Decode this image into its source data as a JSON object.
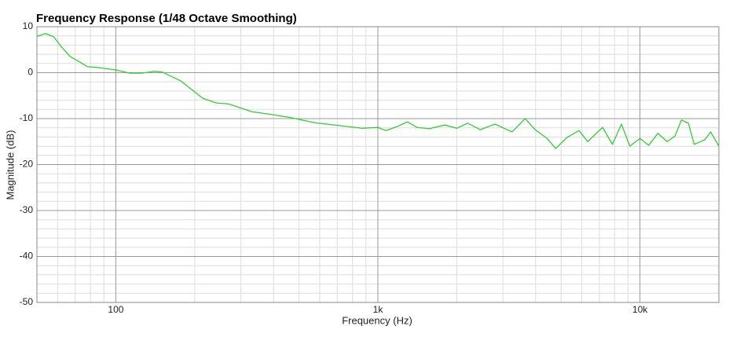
{
  "chart_data": {
    "type": "line",
    "title": "Frequency Response (1/48 Octave Smoothing)",
    "x_label": "Frequency (Hz)",
    "y_label": "Magnitude (dB)",
    "x_scale": "log",
    "grid": true,
    "xlim": [
      50,
      20000
    ],
    "ylim": [
      -50,
      10
    ],
    "xticks": [
      100,
      {
        "value": 1000,
        "label": "1k"
      },
      {
        "value": 10000,
        "label": "10k"
      }
    ],
    "yticks": [
      -50,
      -40,
      -30,
      -20,
      -10,
      0,
      10
    ],
    "x": [
      50,
      54,
      58,
      62,
      67,
      73,
      78,
      86,
      100,
      113,
      126,
      141,
      151,
      177,
      215,
      242,
      269,
      331,
      393,
      467,
      575,
      708,
      871,
      1000,
      1071,
      1188,
      1296,
      1408,
      1567,
      1800,
      2000,
      2200,
      2460,
      2800,
      3250,
      3650,
      3980,
      4420,
      4770,
      5270,
      5850,
      6320,
      7200,
      7850,
      8500,
      9150,
      10000,
      10800,
      11700,
      12700,
      13600,
      14400,
      15300,
      16100,
      17700,
      18600,
      20000
    ],
    "series": [
      {
        "color": "#33cc33",
        "values": [
          7.9,
          8.5,
          7.8,
          5.6,
          3.5,
          2.3,
          1.3,
          1.1,
          0.6,
          -0.1,
          -0.1,
          0.3,
          0.1,
          -1.8,
          -5.6,
          -6.6,
          -6.8,
          -8.5,
          -9.1,
          -9.8,
          -10.9,
          -11.5,
          -12.1,
          -11.9,
          -12.6,
          -11.7,
          -10.7,
          -11.9,
          -12.2,
          -11.4,
          -12.1,
          -11.0,
          -12.4,
          -11.2,
          -12.9,
          -10.0,
          -12.4,
          -14.3,
          -16.5,
          -14.1,
          -12.6,
          -15.0,
          -11.9,
          -15.6,
          -11.2,
          -16.0,
          -14.3,
          -15.8,
          -13.2,
          -15.0,
          -13.8,
          -10.3,
          -11.0,
          -15.6,
          -14.6,
          -12.9,
          -16.0
        ]
      }
    ]
  }
}
